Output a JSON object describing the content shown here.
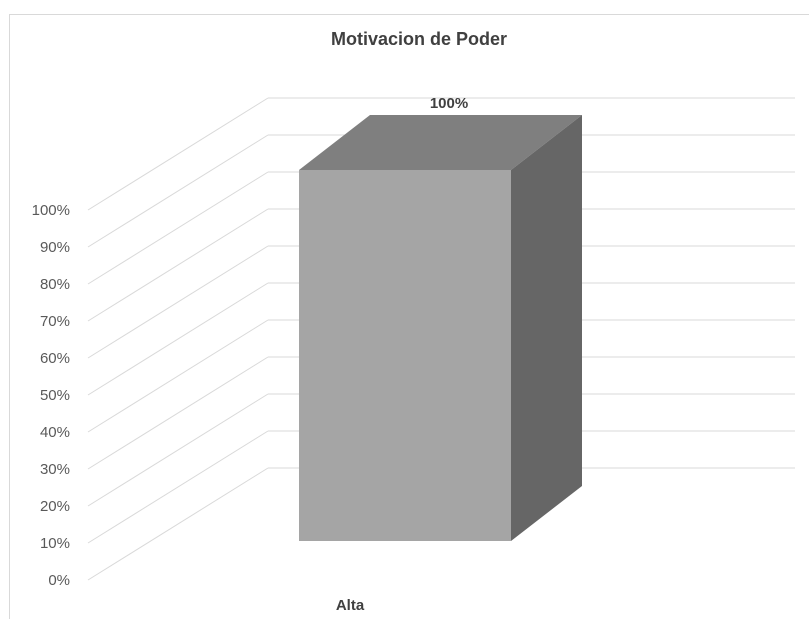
{
  "chart_data": {
    "type": "bar",
    "title": "Motivacion de Poder",
    "categories": [
      "Alta"
    ],
    "values": [
      100
    ],
    "data_labels": [
      "100%"
    ],
    "xlabel": "",
    "ylabel": "",
    "ylim": [
      0,
      100
    ],
    "y_ticks": [
      "0%",
      "10%",
      "20%",
      "30%",
      "40%",
      "50%",
      "60%",
      "70%",
      "80%",
      "90%",
      "100%"
    ],
    "grid": true,
    "legend": "none",
    "three_d": true,
    "colors": {
      "bar_front": "#a5a5a5",
      "bar_top": "#7f7f7f",
      "bar_side": "#666666",
      "grid": "#d9d9d9"
    }
  }
}
